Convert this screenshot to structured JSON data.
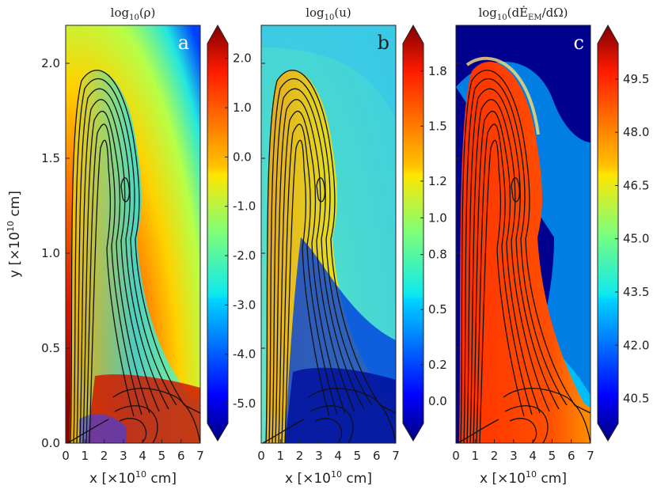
{
  "chart_data": [
    {
      "type": "heatmap",
      "panel_label": "a",
      "title": "log10(ρ)",
      "title_parts": {
        "prefix": "log",
        "sub": "10",
        "body": "(ρ)"
      },
      "xlabel": "x [×10^10 cm]",
      "ylabel": "y [×10^10 cm]",
      "xlim": [
        0,
        7
      ],
      "ylim": [
        0,
        2.2
      ],
      "x_ticks": [
        "0",
        "1",
        "2",
        "3",
        "4",
        "5",
        "6",
        "7"
      ],
      "y_ticks": [
        "0.0",
        "0.5",
        "1.0",
        "1.5",
        "2.0"
      ],
      "colorbar": {
        "range": [
          -5.4,
          2.3
        ],
        "ticks": [
          "2.0",
          "1.0",
          "0.0",
          "-1.0",
          "-2.0",
          "-3.0",
          "-4.0",
          "-5.0"
        ],
        "tick_values": [
          2.0,
          1.0,
          0.0,
          -1.0,
          -2.0,
          -3.0,
          -4.0,
          -5.0
        ],
        "colormap": "jet",
        "extend": "both"
      },
      "contours": "black magnetic field lines"
    },
    {
      "type": "heatmap",
      "panel_label": "b",
      "title": "log10(u)",
      "title_parts": {
        "prefix": "log",
        "sub": "10",
        "body": "(u)"
      },
      "xlabel": "x [×10^10 cm]",
      "xlim": [
        0,
        7
      ],
      "ylim": [
        0,
        2.2
      ],
      "x_ticks": [
        "0",
        "1",
        "2",
        "3",
        "4",
        "5",
        "6",
        "7"
      ],
      "colorbar": {
        "range": [
          -0.12,
          1.95
        ],
        "ticks": [
          "1.8",
          "1.5",
          "1.2",
          "1.0",
          "0.8",
          "0.5",
          "0.2",
          "0.0"
        ],
        "tick_values": [
          1.8,
          1.5,
          1.2,
          1.0,
          0.8,
          0.5,
          0.2,
          0.0
        ],
        "colormap": "jet",
        "extend": "both"
      },
      "contours": "black magnetic field lines"
    },
    {
      "type": "heatmap",
      "panel_label": "c",
      "title": "log10(dĖEM/dΩ)",
      "title_parts": {
        "prefix": "log",
        "sub": "10",
        "body": "(dĖ",
        "sub2": "EM",
        "tail": "/dΩ)"
      },
      "xlabel": "x [×10^10 cm]",
      "xlim": [
        0,
        7
      ],
      "ylim": [
        0,
        2.2
      ],
      "x_ticks": [
        "0",
        "1",
        "2",
        "3",
        "4",
        "5",
        "6",
        "7"
      ],
      "colorbar": {
        "range": [
          39.8,
          50.5
        ],
        "ticks": [
          "49.5",
          "48.0",
          "46.5",
          "45.0",
          "43.5",
          "42.0",
          "40.5"
        ],
        "tick_values": [
          49.5,
          48.0,
          46.5,
          45.0,
          43.5,
          42.0,
          40.5
        ],
        "colormap": "jet",
        "extend": "both"
      },
      "contours": "black magnetic field lines"
    }
  ],
  "labels": {
    "xlabel_prefix": "x [",
    "xlabel_mid": "×10",
    "xlabel_sup": "10",
    "xlabel_suffix": " cm]",
    "ylabel_prefix": "y [",
    "ylabel_mid": "×10",
    "ylabel_sup": "10",
    "ylabel_suffix": " cm]"
  }
}
